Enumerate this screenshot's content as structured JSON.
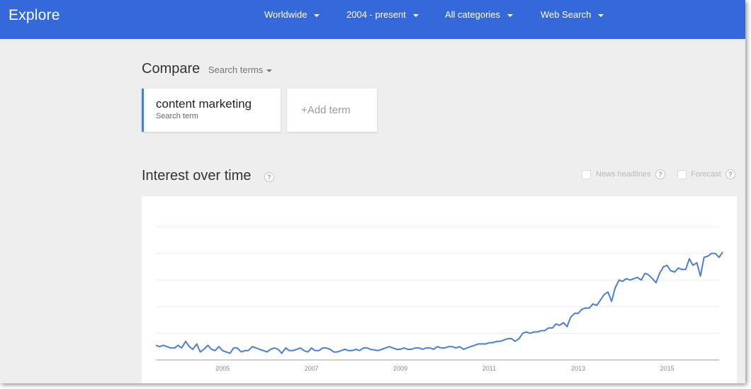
{
  "header": {
    "brand": "Explore",
    "filters": [
      {
        "label": "Worldwide"
      },
      {
        "label": "2004 - present"
      },
      {
        "label": "All categories"
      },
      {
        "label": "Web Search"
      }
    ]
  },
  "compare": {
    "title": "Compare",
    "mode": "Search terms"
  },
  "terms": [
    {
      "name": "content marketing",
      "type": "Search term",
      "color": "#4a7fd9"
    }
  ],
  "add_term": {
    "label": "Add term",
    "symbol": "+"
  },
  "interest": {
    "title": "Interest over time",
    "help_symbol": "?",
    "options": [
      {
        "label": "News headlines",
        "checked": false
      },
      {
        "label": "Forecast",
        "checked": false
      }
    ]
  },
  "chart_data": {
    "type": "line",
    "line_color": "#4a7fd9",
    "grid": true,
    "legend": "none",
    "x_labels": [
      "2005",
      "2007",
      "2009",
      "2011",
      "2013",
      "2015"
    ],
    "x_range": [
      2004.0,
      2016.67
    ],
    "y_range": [
      0,
      100
    ],
    "series": [
      {
        "values": [
          [
            2004.0,
            11
          ],
          [
            2004.08,
            10
          ],
          [
            2004.17,
            11
          ],
          [
            2004.25,
            10
          ],
          [
            2004.33,
            9
          ],
          [
            2004.42,
            9
          ],
          [
            2004.5,
            11
          ],
          [
            2004.58,
            9
          ],
          [
            2004.67,
            14
          ],
          [
            2004.75,
            10
          ],
          [
            2004.83,
            8
          ],
          [
            2004.92,
            12
          ],
          [
            2005.0,
            6
          ],
          [
            2005.08,
            8
          ],
          [
            2005.17,
            11
          ],
          [
            2005.25,
            8
          ],
          [
            2005.33,
            7
          ],
          [
            2005.42,
            10
          ],
          [
            2005.5,
            7
          ],
          [
            2005.58,
            6
          ],
          [
            2005.67,
            5
          ],
          [
            2005.75,
            9
          ],
          [
            2005.83,
            9
          ],
          [
            2005.92,
            6
          ],
          [
            2006.0,
            7
          ],
          [
            2006.08,
            7
          ],
          [
            2006.17,
            10
          ],
          [
            2006.25,
            9
          ],
          [
            2006.33,
            8
          ],
          [
            2006.42,
            7
          ],
          [
            2006.5,
            6
          ],
          [
            2006.58,
            8
          ],
          [
            2006.67,
            9
          ],
          [
            2006.75,
            8
          ],
          [
            2006.83,
            5
          ],
          [
            2006.92,
            9
          ],
          [
            2007.0,
            7
          ],
          [
            2007.08,
            7
          ],
          [
            2007.17,
            8
          ],
          [
            2007.25,
            9
          ],
          [
            2007.33,
            7
          ],
          [
            2007.42,
            6
          ],
          [
            2007.5,
            9
          ],
          [
            2007.58,
            7
          ],
          [
            2007.67,
            7
          ],
          [
            2007.75,
            9
          ],
          [
            2007.83,
            9
          ],
          [
            2007.92,
            8
          ],
          [
            2008.0,
            6
          ],
          [
            2008.08,
            6
          ],
          [
            2008.17,
            7
          ],
          [
            2008.25,
            8
          ],
          [
            2008.33,
            7
          ],
          [
            2008.42,
            7
          ],
          [
            2008.5,
            8
          ],
          [
            2008.58,
            7
          ],
          [
            2008.67,
            9
          ],
          [
            2008.75,
            9
          ],
          [
            2008.83,
            8
          ],
          [
            2009.0,
            7
          ],
          [
            2009.08,
            8
          ],
          [
            2009.17,
            9
          ],
          [
            2009.25,
            10
          ],
          [
            2009.33,
            9
          ],
          [
            2009.42,
            8
          ],
          [
            2009.5,
            8
          ],
          [
            2009.58,
            9
          ],
          [
            2009.67,
            8
          ],
          [
            2009.75,
            8
          ],
          [
            2009.83,
            9
          ],
          [
            2009.92,
            9
          ],
          [
            2010.0,
            8
          ],
          [
            2010.08,
            9
          ],
          [
            2010.17,
            9
          ],
          [
            2010.25,
            8
          ],
          [
            2010.33,
            10
          ],
          [
            2010.42,
            9
          ],
          [
            2010.5,
            9
          ],
          [
            2010.58,
            10
          ],
          [
            2010.67,
            10
          ],
          [
            2010.75,
            9
          ],
          [
            2010.83,
            10
          ],
          [
            2010.92,
            8
          ],
          [
            2011.0,
            9
          ],
          [
            2011.08,
            10
          ],
          [
            2011.17,
            11
          ],
          [
            2011.25,
            12
          ],
          [
            2011.33,
            12
          ],
          [
            2011.42,
            12
          ],
          [
            2011.5,
            13
          ],
          [
            2011.58,
            13
          ],
          [
            2011.67,
            14
          ],
          [
            2011.75,
            14
          ],
          [
            2011.83,
            15
          ],
          [
            2011.92,
            16
          ],
          [
            2012.0,
            16
          ],
          [
            2012.08,
            14
          ],
          [
            2012.17,
            16
          ],
          [
            2012.25,
            20
          ],
          [
            2012.33,
            21
          ],
          [
            2012.42,
            20
          ],
          [
            2012.5,
            21
          ],
          [
            2012.58,
            21
          ],
          [
            2012.67,
            22
          ],
          [
            2012.75,
            22
          ],
          [
            2012.83,
            24
          ],
          [
            2012.92,
            24
          ],
          [
            2013.0,
            27
          ],
          [
            2013.08,
            26
          ],
          [
            2013.17,
            28
          ],
          [
            2013.25,
            25
          ],
          [
            2013.33,
            32
          ],
          [
            2013.42,
            35
          ],
          [
            2013.5,
            35
          ],
          [
            2013.58,
            38
          ],
          [
            2013.67,
            39
          ],
          [
            2013.75,
            39
          ],
          [
            2013.83,
            42
          ],
          [
            2013.92,
            41
          ],
          [
            2014.0,
            45
          ],
          [
            2014.08,
            49
          ],
          [
            2014.17,
            51
          ],
          [
            2014.25,
            44
          ],
          [
            2014.33,
            54
          ],
          [
            2014.42,
            60
          ],
          [
            2014.5,
            59
          ],
          [
            2014.58,
            61
          ],
          [
            2014.67,
            60
          ],
          [
            2014.75,
            61
          ],
          [
            2014.83,
            62
          ],
          [
            2014.92,
            60
          ],
          [
            2015.0,
            65
          ],
          [
            2015.08,
            64
          ],
          [
            2015.17,
            61
          ],
          [
            2015.25,
            58
          ],
          [
            2015.33,
            65
          ],
          [
            2015.42,
            70
          ],
          [
            2015.5,
            71
          ],
          [
            2015.58,
            67
          ],
          [
            2015.67,
            66
          ],
          [
            2015.75,
            69
          ],
          [
            2015.83,
            68
          ],
          [
            2015.92,
            68
          ],
          [
            2016.0,
            76
          ],
          [
            2016.08,
            71
          ],
          [
            2016.17,
            73
          ],
          [
            2016.25,
            63
          ],
          [
            2016.33,
            77
          ],
          [
            2016.42,
            78
          ],
          [
            2016.5,
            80
          ],
          [
            2016.58,
            80
          ],
          [
            2016.67,
            77
          ],
          [
            2016.75,
            81
          ]
        ]
      }
    ]
  }
}
